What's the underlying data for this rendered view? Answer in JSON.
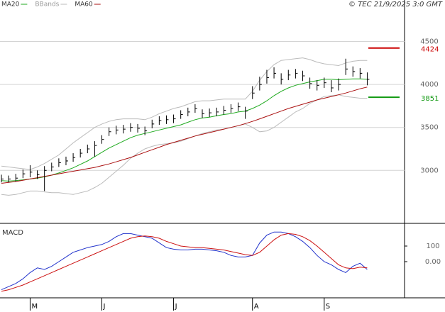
{
  "chart_data": [
    {
      "type": "ohlc",
      "note": "© TEC 21/9/2025 3:0 GMT",
      "xlim": [
        -0.2,
        56.2
      ],
      "ylim": [
        2400,
        4983
      ],
      "yticks": [
        3000,
        3500,
        4000,
        4500
      ],
      "grid": true,
      "color": "#000000",
      "close": [
        2900,
        2900,
        2910,
        2960,
        2980,
        2950,
        3000,
        3040,
        3090,
        3110,
        3150,
        3200,
        3250,
        3290,
        3360,
        3450,
        3470,
        3480,
        3500,
        3490,
        3460,
        3540,
        3580,
        3590,
        3600,
        3650,
        3680,
        3720,
        3660,
        3670,
        3680,
        3700,
        3720,
        3740,
        3690,
        3900,
        4000,
        4080,
        4130,
        4060,
        4110,
        4130,
        4100,
        4010,
        3990,
        4020,
        3960,
        4000,
        4180,
        4150,
        4130,
        4060
      ],
      "high": [
        2950,
        2940,
        2960,
        3010,
        3060,
        3000,
        3050,
        3090,
        3140,
        3160,
        3200,
        3250,
        3300,
        3340,
        3410,
        3500,
        3520,
        3530,
        3550,
        3540,
        3510,
        3590,
        3630,
        3640,
        3650,
        3700,
        3730,
        3770,
        3710,
        3720,
        3730,
        3750,
        3770,
        3790,
        3740,
        3980,
        4090,
        4170,
        4200,
        4130,
        4170,
        4180,
        4160,
        4080,
        4050,
        4080,
        4050,
        4070,
        4300,
        4210,
        4190,
        4140
      ],
      "low": [
        2860,
        2860,
        2870,
        2910,
        2920,
        2900,
        2760,
        2990,
        3040,
        3060,
        3100,
        3150,
        3200,
        3160,
        3310,
        3400,
        3420,
        3430,
        3450,
        3440,
        3410,
        3490,
        3530,
        3540,
        3550,
        3600,
        3630,
        3670,
        3610,
        3620,
        3630,
        3650,
        3670,
        3690,
        3600,
        3830,
        3930,
        4010,
        4070,
        4000,
        4050,
        4070,
        4040,
        3950,
        3930,
        3960,
        3910,
        3930,
        4110,
        4090,
        4070,
        3990
      ],
      "series": [
        {
          "name": "MA20",
          "color": "#1faa1f",
          "values": [
            2880,
            2875,
            2880,
            2890,
            2900,
            2910,
            2925,
            2945,
            2970,
            3000,
            3030,
            3070,
            3110,
            3160,
            3210,
            3260,
            3300,
            3340,
            3380,
            3410,
            3430,
            3450,
            3470,
            3490,
            3510,
            3530,
            3560,
            3590,
            3610,
            3620,
            3635,
            3650,
            3660,
            3680,
            3690,
            3720,
            3760,
            3810,
            3870,
            3920,
            3960,
            3990,
            4010,
            4030,
            4045,
            4060,
            4060,
            4055,
            4060,
            4065,
            4065,
            4060
          ]
        },
        {
          "name": "MA60",
          "color": "#aa1111",
          "values": [
            2850,
            2860,
            2870,
            2885,
            2900,
            2915,
            2930,
            2945,
            2960,
            2975,
            2990,
            3005,
            3020,
            3035,
            3055,
            3075,
            3100,
            3125,
            3150,
            3180,
            3210,
            3240,
            3270,
            3300,
            3325,
            3350,
            3375,
            3400,
            3420,
            3440,
            3460,
            3480,
            3500,
            3520,
            3545,
            3570,
            3600,
            3630,
            3660,
            3690,
            3720,
            3745,
            3770,
            3795,
            3820,
            3840,
            3860,
            3880,
            3900,
            3925,
            3950,
            3970
          ]
        }
      ],
      "bbands": {
        "name": "BBands",
        "color": "#bbbbbb",
        "upper": [
          3050,
          3040,
          3030,
          3020,
          3010,
          3040,
          3080,
          3130,
          3180,
          3250,
          3320,
          3380,
          3440,
          3500,
          3540,
          3570,
          3590,
          3600,
          3600,
          3600,
          3590,
          3620,
          3660,
          3690,
          3720,
          3740,
          3770,
          3800,
          3810,
          3810,
          3820,
          3830,
          3830,
          3830,
          3830,
          3920,
          4050,
          4150,
          4230,
          4280,
          4290,
          4300,
          4310,
          4290,
          4260,
          4240,
          4230,
          4220,
          4250,
          4270,
          4280,
          4280
        ],
        "lower": [
          2720,
          2710,
          2720,
          2740,
          2760,
          2760,
          2750,
          2740,
          2740,
          2730,
          2720,
          2740,
          2760,
          2800,
          2850,
          2920,
          2990,
          3060,
          3140,
          3200,
          3250,
          3280,
          3300,
          3310,
          3320,
          3340,
          3370,
          3400,
          3430,
          3450,
          3470,
          3480,
          3500,
          3520,
          3540,
          3500,
          3450,
          3460,
          3500,
          3560,
          3620,
          3680,
          3720,
          3780,
          3820,
          3860,
          3870,
          3880,
          3860,
          3850,
          3840,
          3840
        ]
      },
      "levels": [
        {
          "value": 4424,
          "color": "#cc0000"
        },
        {
          "value": 3851,
          "color": "#119911"
        }
      ]
    },
    {
      "type": "line",
      "title": "MACD",
      "xlim": [
        -0.2,
        56.2
      ],
      "ylim": [
        -232,
        241
      ],
      "yticks": [
        100,
        {
          "value": 0,
          "label": "0.00"
        }
      ],
      "xticks": [
        {
          "value": 4,
          "label": "M"
        },
        {
          "value": 14,
          "label": "J"
        },
        {
          "value": 24,
          "label": "J"
        },
        {
          "value": 35,
          "label": "A"
        },
        {
          "value": 45,
          "label": "S"
        }
      ],
      "series": [
        {
          "color": "#2233cc",
          "values": [
            -180,
            -160,
            -140,
            -110,
            -70,
            -40,
            -50,
            -30,
            0,
            30,
            60,
            75,
            90,
            100,
            110,
            130,
            160,
            180,
            180,
            170,
            160,
            150,
            120,
            90,
            80,
            75,
            75,
            80,
            80,
            75,
            70,
            60,
            40,
            30,
            30,
            40,
            120,
            170,
            190,
            190,
            180,
            160,
            130,
            90,
            40,
            0,
            -20,
            -50,
            -70,
            -30,
            -10,
            -50
          ]
        },
        {
          "color": "#cc1111",
          "values": [
            -190,
            -180,
            -165,
            -150,
            -130,
            -110,
            -90,
            -70,
            -50,
            -30,
            -10,
            10,
            30,
            50,
            70,
            90,
            110,
            130,
            150,
            160,
            165,
            160,
            150,
            130,
            115,
            100,
            95,
            90,
            90,
            85,
            80,
            75,
            65,
            55,
            45,
            40,
            60,
            100,
            140,
            170,
            180,
            175,
            160,
            135,
            100,
            60,
            20,
            -20,
            -40,
            -45,
            -35,
            -40
          ]
        }
      ]
    }
  ]
}
